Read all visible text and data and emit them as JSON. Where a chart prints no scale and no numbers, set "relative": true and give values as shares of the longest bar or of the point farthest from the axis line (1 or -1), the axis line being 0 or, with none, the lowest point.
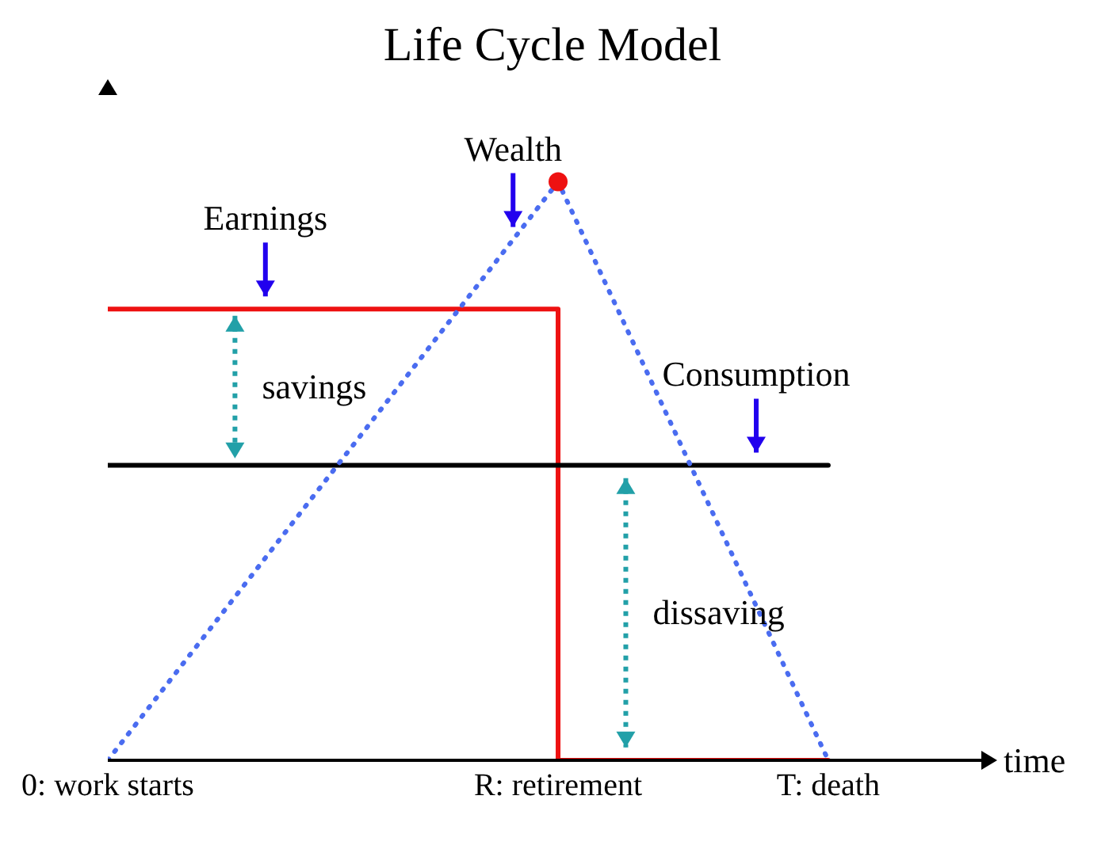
{
  "chart_data": {
    "type": "line",
    "title": "Life Cycle Model",
    "xlabel": "time",
    "relative": true,
    "categories": [
      "0: work starts",
      null,
      null,
      null,
      null,
      "R: retirement",
      null,
      null,
      "T: death",
      null
    ],
    "series": [
      {
        "name": "Earnings",
        "color": "#ee1111",
        "line_style": "solid",
        "x": [
          "0: work starts",
          "R: retirement",
          "R: retirement",
          "T: death"
        ],
        "values": [
          0.78,
          0.78,
          0,
          0
        ]
      },
      {
        "name": "Consumption",
        "color": "#000000",
        "line_style": "solid",
        "x": [
          "0: work starts",
          "T: death"
        ],
        "values": [
          0.51,
          0.51
        ]
      },
      {
        "name": "Wealth",
        "color": "#4a6cf0",
        "line_style": "dotted",
        "x": [
          "0: work starts",
          "R: retirement",
          "T: death"
        ],
        "values": [
          0,
          1,
          0
        ]
      },
      {
        "type": "scatter",
        "color": "#ee1111",
        "x": [
          "R: retirement"
        ],
        "values": [
          1
        ]
      }
    ],
    "annotations": [
      "savings",
      "dissaving"
    ]
  }
}
